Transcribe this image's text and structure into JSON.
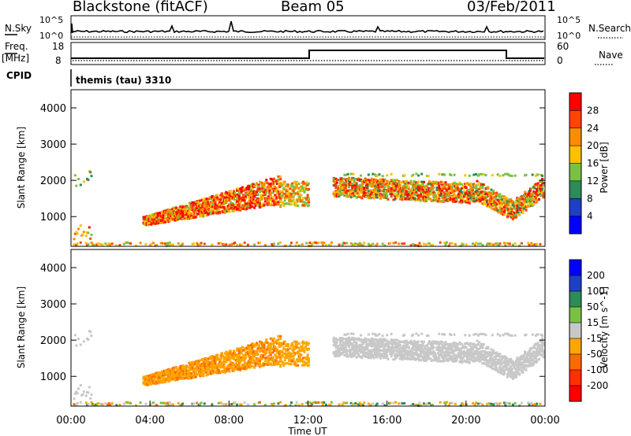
{
  "header": {
    "station": "Blackstone (fitACF)",
    "beam": "Beam 05",
    "date": "03/Feb/2011"
  },
  "panels": {
    "nsky_label": "N.Sky",
    "nsky_ticks": [
      "10^5",
      "10^0"
    ],
    "nsearch_label": "N.Search",
    "nsearch_ticks": [
      "10^5",
      "10^0"
    ],
    "freq_label": "Freq.",
    "freq_unit": "[MHz]",
    "freq_ticks": [
      "18",
      "8"
    ],
    "nave_label": "Nave",
    "nave_ticks": [
      "60",
      "0"
    ],
    "cpid_label": "CPID",
    "cpid_text": "themis (tau) 3310"
  },
  "chart_data": [
    {
      "type": "heatmap",
      "name": "power",
      "ylabel": "Slant Range [km]",
      "xlabel": "",
      "yticks": [
        "4000",
        "3000",
        "2000",
        "1000"
      ],
      "colorbar_label": "Power [dB]",
      "colorbar_ticks": [
        "28",
        "24",
        "20",
        "16",
        "12",
        "8",
        "4"
      ],
      "colorbar_colors": [
        "#ff0000",
        "#ff4500",
        "#ff8c00",
        "#ffc000",
        "#7ac143",
        "#2e8b57",
        "#1e40c8",
        "#0000ff"
      ],
      "xlim_hours": [
        0,
        24
      ],
      "ylim_km": [
        180,
        4500
      ]
    },
    {
      "type": "heatmap",
      "name": "velocity",
      "ylabel": "Slant Range [km]",
      "xlabel": "Time UT",
      "yticks": [
        "4000",
        "3000",
        "2000",
        "1000"
      ],
      "xticks": [
        "00:00",
        "04:00",
        "08:00",
        "12:00",
        "16:00",
        "20:00",
        "00:00"
      ],
      "colorbar_label": "Velocity [m s^-1]",
      "colorbar_ticks": [
        "200",
        "100",
        "50",
        "15",
        "-15",
        "-50",
        "-100",
        "-200"
      ],
      "colorbar_colors": [
        "#0000ff",
        "#1e40c8",
        "#2e8b57",
        "#7ac143",
        "#c8c8c8",
        "#ffa500",
        "#ff6a00",
        "#ff3000",
        "#ff0000"
      ],
      "xlim_hours": [
        0,
        24
      ],
      "ylim_km": [
        180,
        4500
      ]
    }
  ]
}
